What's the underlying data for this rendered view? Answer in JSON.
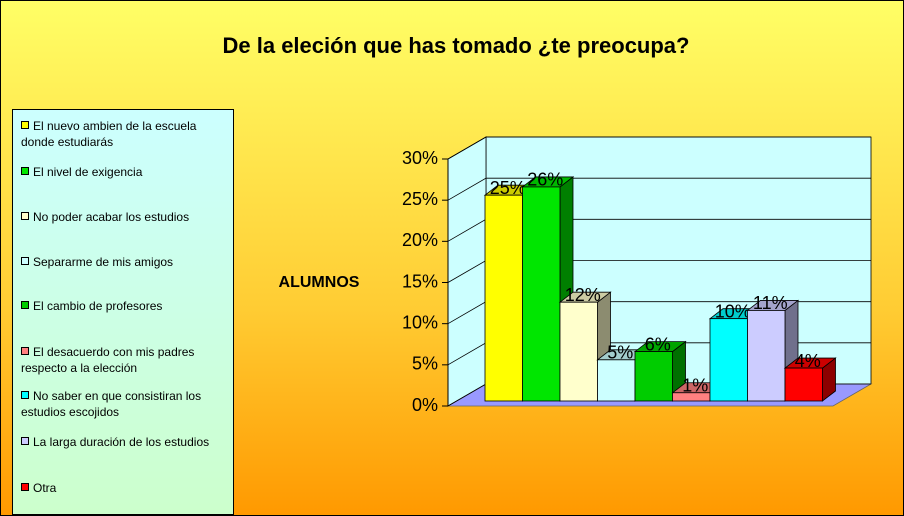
{
  "chart_data": {
    "type": "bar3d",
    "title": "De la eleción que has tomado ¿te preocupa?",
    "ylabel": "ALUMNOS",
    "ylim": [
      0,
      30
    ],
    "yticks": [
      {
        "value": 0,
        "label": "0%"
      },
      {
        "value": 5,
        "label": "5%"
      },
      {
        "value": 10,
        "label": "10%"
      },
      {
        "value": 15,
        "label": "15%"
      },
      {
        "value": 20,
        "label": "20%"
      },
      {
        "value": 25,
        "label": "25%"
      },
      {
        "value": 30,
        "label": "30%"
      }
    ],
    "grid": true,
    "legend": "left",
    "series": [
      {
        "name": "El nuevo ambien de la escuela donde estudiarás",
        "color": "#ffff00",
        "values": [
          25
        ],
        "value_labels": [
          "25%"
        ]
      },
      {
        "name": "El nivel de exigencia",
        "color": "#00e600",
        "values": [
          26
        ],
        "value_labels": [
          "26%"
        ]
      },
      {
        "name": "No poder acabar los estudios",
        "color": "#ffffcc",
        "values": [
          12
        ],
        "value_labels": [
          "12%"
        ]
      },
      {
        "name": "Separarme de mis amigos",
        "color": "#ccffff",
        "values": [
          5
        ],
        "value_labels": [
          "5%"
        ]
      },
      {
        "name": "El cambio de profesores",
        "color": "#00cc00",
        "values": [
          6
        ],
        "value_labels": [
          "6%"
        ]
      },
      {
        "name": "El desacuerdo con mis padres respecto a la elección",
        "color": "#ff8080",
        "values": [
          1
        ],
        "value_labels": [
          "1%"
        ]
      },
      {
        "name": "No saber en que consistiran los estudios escojidos",
        "color": "#00ffff",
        "values": [
          10
        ],
        "value_labels": [
          "10%"
        ]
      },
      {
        "name": "La larga duración de los estudios",
        "color": "#ccccff",
        "values": [
          11
        ],
        "value_labels": [
          "11%"
        ]
      },
      {
        "name": "Otra",
        "color": "#ff0000",
        "values": [
          4
        ],
        "value_labels": [
          "4%"
        ]
      }
    ]
  }
}
